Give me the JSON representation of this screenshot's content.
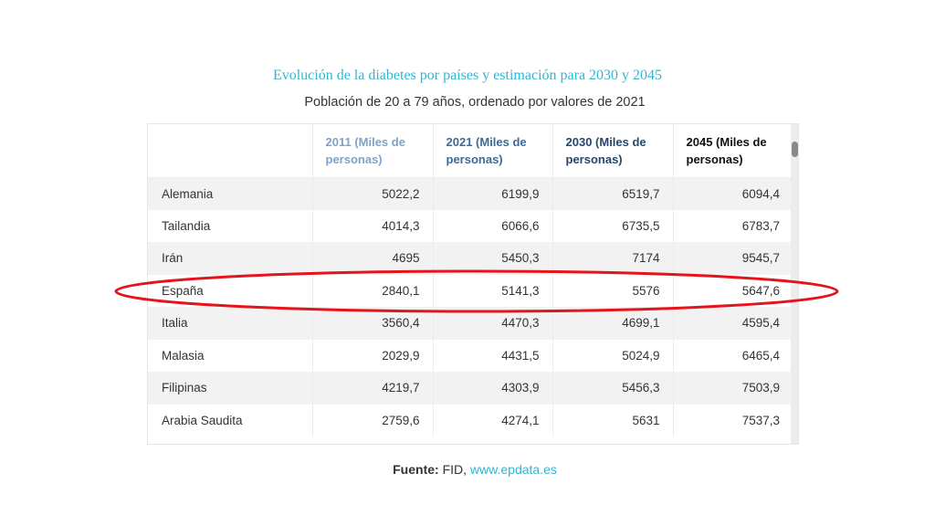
{
  "chart_data": {
    "type": "table",
    "title": "Evolución de la diabetes por países y estimación para 2030 y 2045",
    "subtitle": "Población de 20 a 79 años, ordenado por valores de 2021",
    "columns": [
      "",
      "2011 (Miles de personas)",
      "2021 (Miles de personas)",
      "2030 (Miles de personas)",
      "2045 (Miles de personas)"
    ],
    "header_colors": [
      "#333333",
      "#7fa3c6",
      "#3d6a98",
      "#27476b",
      "#111111"
    ],
    "rows": [
      {
        "label": "Alemania",
        "values": [
          "5022,2",
          "6199,9",
          "6519,7",
          "6094,4"
        ]
      },
      {
        "label": "Tailandia",
        "values": [
          "4014,3",
          "6066,6",
          "6735,5",
          "6783,7"
        ]
      },
      {
        "label": "Irán",
        "values": [
          "4695",
          "5450,3",
          "7174",
          "9545,7"
        ]
      },
      {
        "label": "España",
        "values": [
          "2840,1",
          "5141,3",
          "5576",
          "5647,6"
        ]
      },
      {
        "label": "Italia",
        "values": [
          "3560,4",
          "4470,3",
          "4699,1",
          "4595,4"
        ]
      },
      {
        "label": "Malasia",
        "values": [
          "2029,9",
          "4431,5",
          "5024,9",
          "6465,4"
        ]
      },
      {
        "label": "Filipinas",
        "values": [
          "4219,7",
          "4303,9",
          "5456,3",
          "7503,9"
        ]
      },
      {
        "label": "Arabia Saudita",
        "values": [
          "2759,6",
          "4274,1",
          "5631",
          "7537,3"
        ]
      }
    ],
    "highlighted_row": "España",
    "highlight_color": "#e3141b",
    "title_color": "#33b5d2"
  },
  "source": {
    "label": "Fuente:",
    "text": "FID,",
    "link": "www.epdata.es"
  }
}
